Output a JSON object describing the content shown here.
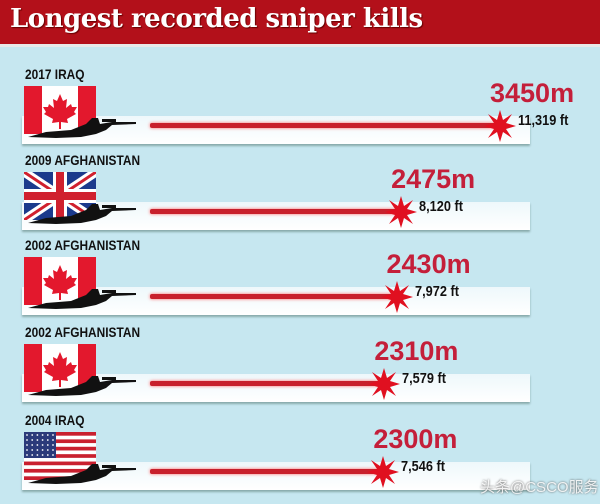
{
  "chart_data": {
    "type": "bar",
    "title": "Longest recorded sniper kills",
    "orientation": "horizontal",
    "categories": [
      "2017 IRAQ",
      "2009 AFGHANISTAN",
      "2002 AFGHANISTAN",
      "2002 AFGHANISTAN",
      "2004 IRAQ"
    ],
    "flags": [
      "canada",
      "uk",
      "canada",
      "canada",
      "usa"
    ],
    "values_m": [
      3450,
      2475,
      2430,
      2310,
      2300
    ],
    "meters_labels": [
      "3450m",
      "2475m",
      "2430m",
      "2310m",
      "2300m"
    ],
    "feet_labels": [
      "11,319 ft",
      "8,120 ft",
      "7,972 ft",
      "7,579 ft",
      "7,546 ft"
    ],
    "colors": {
      "title_bar": "#b3101a",
      "bar": "#c8202c",
      "value_text": "#c41f3a",
      "background": "#c6e7f0"
    }
  },
  "watermark": "头条@CSCO服务"
}
